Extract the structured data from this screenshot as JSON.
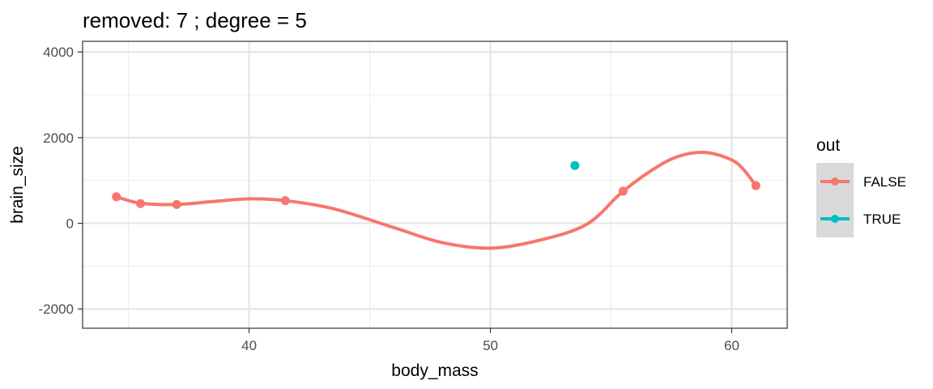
{
  "chart_data": {
    "type": "scatter",
    "title": "removed: 7  ;  degree = 5",
    "xlabel": "body_mass",
    "ylabel": "brain_size",
    "xlim": [
      33.1,
      62.3
    ],
    "ylim": [
      -2450,
      4250
    ],
    "x_ticks": [
      40,
      50,
      60
    ],
    "y_ticks": [
      -2000,
      0,
      2000,
      4000
    ],
    "grid": true,
    "legend": {
      "title": "out",
      "placement": "right",
      "entries": [
        {
          "label": "FALSE",
          "color": "#F8766D"
        },
        {
          "label": "TRUE",
          "color": "#00BFC4"
        }
      ]
    },
    "series": [
      {
        "name": "FALSE",
        "color": "#F8766D",
        "points": [
          {
            "x": 34.5,
            "y": 620
          },
          {
            "x": 35.5,
            "y": 460
          },
          {
            "x": 37.0,
            "y": 440
          },
          {
            "x": 41.5,
            "y": 530
          },
          {
            "x": 55.5,
            "y": 750
          },
          {
            "x": 61.0,
            "y": 880
          }
        ]
      },
      {
        "name": "TRUE",
        "color": "#00BFC4",
        "points": [
          {
            "x": 53.5,
            "y": 1350
          }
        ]
      }
    ],
    "fit_curve": {
      "color": "#F8766D",
      "points": [
        {
          "x": 34.5,
          "y": 620
        },
        {
          "x": 35.5,
          "y": 470
        },
        {
          "x": 37.0,
          "y": 440
        },
        {
          "x": 38.5,
          "y": 510
        },
        {
          "x": 40.0,
          "y": 570
        },
        {
          "x": 41.5,
          "y": 530
        },
        {
          "x": 43.5,
          "y": 340
        },
        {
          "x": 46.0,
          "y": -100
        },
        {
          "x": 48.0,
          "y": -450
        },
        {
          "x": 50.0,
          "y": -580
        },
        {
          "x": 52.0,
          "y": -400
        },
        {
          "x": 54.0,
          "y": -20
        },
        {
          "x": 55.5,
          "y": 750
        },
        {
          "x": 57.0,
          "y": 1350
        },
        {
          "x": 58.0,
          "y": 1600
        },
        {
          "x": 59.0,
          "y": 1650
        },
        {
          "x": 60.0,
          "y": 1480
        },
        {
          "x": 60.5,
          "y": 1250
        },
        {
          "x": 61.0,
          "y": 880
        }
      ]
    }
  }
}
